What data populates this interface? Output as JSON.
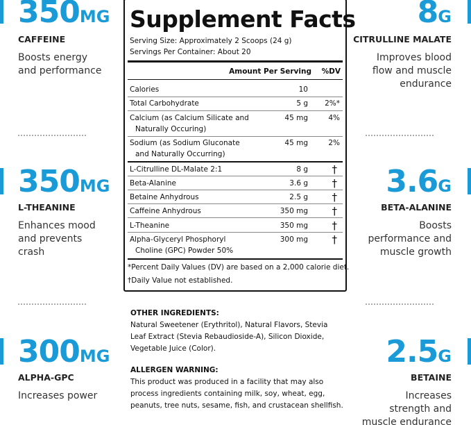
{
  "callouts": [
    {
      "amount": "350",
      "unit": "MG",
      "name": "CAFFEINE",
      "description": [
        "Boosts energy",
        "and performance"
      ]
    },
    {
      "amount": "350",
      "unit": "MG",
      "name": "L-THEANINE",
      "description": [
        "Enhances mood",
        "and prevents",
        "crash"
      ]
    },
    {
      "amount": "300",
      "unit": "MG",
      "name": "ALPHA-GPC",
      "description": [
        "Increases power"
      ]
    },
    {
      "amount": "8",
      "unit": "G",
      "name": "CITRULLINE MALATE",
      "description": [
        "Improves blood",
        "flow and muscle",
        "endurance"
      ]
    },
    {
      "amount": "3.6",
      "unit": "G",
      "name": "BETA-ALANINE",
      "description": [
        "Boosts",
        "performance and",
        "muscle growth"
      ]
    },
    {
      "amount": "2.5",
      "unit": "G",
      "name": "BETAINE",
      "description": [
        "Increases",
        "strength and",
        "muscle endurance"
      ]
    }
  ],
  "facts": {
    "title": "Supplement Facts",
    "serving_size": "Serving Size: Approximately 2 Scoops (24 g)",
    "servings_per_container": "Servings Per Container: About 20",
    "header": {
      "amount": "Amount Per Serving",
      "dv": "%DV"
    },
    "rows": [
      {
        "name": [
          "Calories"
        ],
        "amount": "10"
      },
      {
        "name": [
          "Total Carbohydrate"
        ],
        "amount": "5 g",
        "dv": "2%*"
      },
      {
        "name": [
          "Calcium (as Calcium Silicate and",
          "Naturally Occuring)"
        ],
        "amount": "45 mg",
        "dv": "4%"
      },
      {
        "name": [
          "Sodium (as Sodium Gluconate",
          "and Naturally Occurring)"
        ],
        "amount": "45 mg",
        "dv": "2%"
      },
      {
        "name": [
          "L-Citrulline DL-Malate 2:1"
        ],
        "amount": "8 g",
        "dv": "†"
      },
      {
        "name": [
          "Beta-Alanine"
        ],
        "amount": "3.6 g",
        "dv": "†"
      },
      {
        "name": [
          "Betaine Anhydrous"
        ],
        "amount": "2.5 g",
        "dv": "†"
      },
      {
        "name": [
          "Caffeine Anhydrous"
        ],
        "amount": "350 mg",
        "dv": "†"
      },
      {
        "name": [
          "L-Theanine"
        ],
        "amount": "350 mg",
        "dv": "†"
      },
      {
        "name": [
          "Alpha-Glyceryl Phosphoryl",
          "Choline (GPC) Powder 50%"
        ],
        "amount": "300 mg",
        "dv": "†"
      }
    ],
    "footnotes": [
      "*Percent Daily Values (DV) are based on a 2,000 calorie diet.",
      "†Daily Value not established."
    ]
  },
  "other_ingredients": {
    "title": "OTHER INGREDIENTS:",
    "lines": [
      "Natural Sweetener (Erythritol), Natural Flavors, Stevia",
      "Leaf Extract (Stevia Rebaudioside-A), Silicon Dioxide,",
      "Vegetable Juice (Color)."
    ]
  },
  "allergen_warning": {
    "title": "ALLERGEN WARNING:",
    "lines": [
      "This product was produced in a facility that may also",
      "process ingredients containing milk, soy, wheat, egg,",
      "peanuts, tree nuts, sesame, fish, and crustacean shellfish."
    ]
  }
}
